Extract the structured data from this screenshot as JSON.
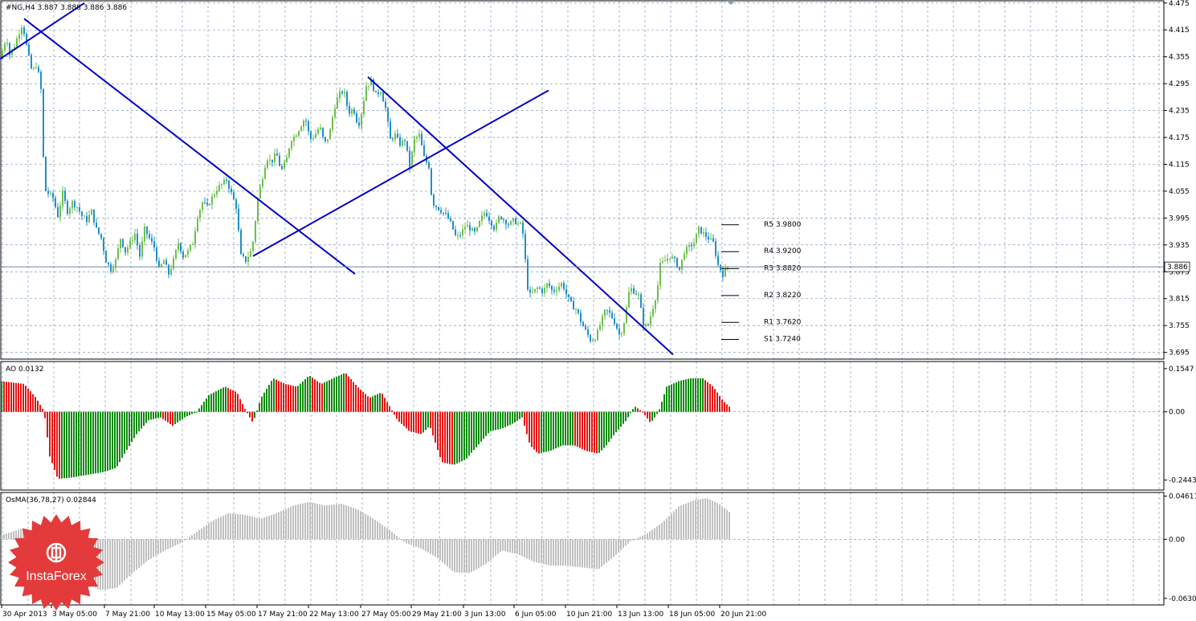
{
  "colors": {
    "bull": "#6dbf4b",
    "bear": "#1f8fc9",
    "trend": "#0000c8",
    "ao_up": "#0a8a0a",
    "ao_down": "#e81010",
    "osma": "#c0c0c0",
    "grid": "#6e8aa8",
    "current": "#6e8aa8",
    "logo": "#e33b3b"
  },
  "chart_data": [
    {
      "type": "candlestick",
      "title": "#NG,H4  3.887 3.888 3.886 3.886",
      "ylim": [
        3.68,
        4.48
      ],
      "y_ticks": [
        "4.475",
        "4.415",
        "4.355",
        "4.295",
        "4.235",
        "4.175",
        "4.115",
        "4.055",
        "3.995",
        "3.935",
        "3.875",
        "3.815",
        "3.755",
        "3.695"
      ],
      "current_price": 3.886,
      "current_label": "3.886",
      "pivot_levels": [
        {
          "label": "R5 3.9800",
          "value": 3.98
        },
        {
          "label": "R4 3.9200",
          "value": 3.92
        },
        {
          "label": "R3 3.8820",
          "value": 3.882
        },
        {
          "label": "R2 3.8220",
          "value": 3.822
        },
        {
          "label": "R1 3.7620",
          "value": 3.762
        },
        {
          "label": "S1 3.7240",
          "value": 3.724
        }
      ],
      "path": [
        [
          0,
          4.35
        ],
        [
          8,
          4.4
        ],
        [
          12,
          4.36
        ],
        [
          18,
          4.38
        ],
        [
          22,
          4.4
        ],
        [
          28,
          4.43
        ],
        [
          34,
          4.37
        ],
        [
          40,
          4.32
        ],
        [
          46,
          4.34
        ],
        [
          52,
          4.27
        ],
        [
          55,
          4.06
        ],
        [
          60,
          4.05
        ],
        [
          66,
          4.04
        ],
        [
          72,
          4.0
        ],
        [
          78,
          4.05
        ],
        [
          84,
          4.01
        ],
        [
          90,
          4.03
        ],
        [
          96,
          4.02
        ],
        [
          102,
          4.0
        ],
        [
          108,
          3.99
        ],
        [
          114,
          4.01
        ],
        [
          120,
          3.97
        ],
        [
          126,
          3.95
        ],
        [
          132,
          3.9
        ],
        [
          138,
          3.88
        ],
        [
          144,
          3.9
        ],
        [
          150,
          3.95
        ],
        [
          156,
          3.92
        ],
        [
          162,
          3.94
        ],
        [
          168,
          3.96
        ],
        [
          174,
          3.91
        ],
        [
          180,
          3.97
        ],
        [
          186,
          3.95
        ],
        [
          192,
          3.93
        ],
        [
          198,
          3.88
        ],
        [
          204,
          3.9
        ],
        [
          210,
          3.87
        ],
        [
          216,
          3.9
        ],
        [
          222,
          3.94
        ],
        [
          228,
          3.91
        ],
        [
          234,
          3.92
        ],
        [
          240,
          3.94
        ],
        [
          246,
          4.0
        ],
        [
          252,
          4.03
        ],
        [
          258,
          4.02
        ],
        [
          264,
          4.04
        ],
        [
          270,
          4.06
        ],
        [
          276,
          4.07
        ],
        [
          282,
          4.08
        ],
        [
          288,
          4.05
        ],
        [
          294,
          4.02
        ],
        [
          300,
          3.91
        ],
        [
          306,
          3.9
        ],
        [
          312,
          3.92
        ],
        [
          316,
          3.95
        ],
        [
          320,
          4.03
        ],
        [
          326,
          4.08
        ],
        [
          332,
          4.13
        ],
        [
          338,
          4.12
        ],
        [
          344,
          4.14
        ],
        [
          350,
          4.1
        ],
        [
          356,
          4.12
        ],
        [
          362,
          4.17
        ],
        [
          368,
          4.18
        ],
        [
          374,
          4.2
        ],
        [
          380,
          4.22
        ],
        [
          386,
          4.17
        ],
        [
          392,
          4.18
        ],
        [
          398,
          4.2
        ],
        [
          404,
          4.16
        ],
        [
          410,
          4.18
        ],
        [
          416,
          4.24
        ],
        [
          422,
          4.27
        ],
        [
          428,
          4.28
        ],
        [
          434,
          4.23
        ],
        [
          440,
          4.24
        ],
        [
          446,
          4.2
        ],
        [
          450,
          4.23
        ],
        [
          456,
          4.29
        ],
        [
          462,
          4.3
        ],
        [
          468,
          4.27
        ],
        [
          474,
          4.28
        ],
        [
          480,
          4.24
        ],
        [
          486,
          4.17
        ],
        [
          492,
          4.18
        ],
        [
          498,
          4.16
        ],
        [
          504,
          4.17
        ],
        [
          510,
          4.11
        ],
        [
          516,
          4.17
        ],
        [
          522,
          4.18
        ],
        [
          528,
          4.13
        ],
        [
          534,
          4.11
        ],
        [
          538,
          4.03
        ],
        [
          544,
          4.02
        ],
        [
          550,
          4.01
        ],
        [
          556,
          4.0
        ],
        [
          562,
          3.98
        ],
        [
          568,
          3.95
        ],
        [
          574,
          3.96
        ],
        [
          580,
          3.98
        ],
        [
          586,
          3.97
        ],
        [
          592,
          3.96
        ],
        [
          598,
          3.99
        ],
        [
          604,
          4.01
        ],
        [
          610,
          3.99
        ],
        [
          616,
          3.97
        ],
        [
          622,
          4.0
        ],
        [
          628,
          3.99
        ],
        [
          634,
          3.98
        ],
        [
          640,
          3.99
        ],
        [
          646,
          3.98
        ],
        [
          650,
          3.98
        ],
        [
          654,
          3.9
        ],
        [
          658,
          3.82
        ],
        [
          664,
          3.83
        ],
        [
          670,
          3.84
        ],
        [
          676,
          3.83
        ],
        [
          682,
          3.85
        ],
        [
          688,
          3.83
        ],
        [
          694,
          3.84
        ],
        [
          700,
          3.85
        ],
        [
          706,
          3.82
        ],
        [
          712,
          3.8
        ],
        [
          718,
          3.79
        ],
        [
          724,
          3.76
        ],
        [
          730,
          3.74
        ],
        [
          736,
          3.72
        ],
        [
          742,
          3.73
        ],
        [
          748,
          3.76
        ],
        [
          754,
          3.79
        ],
        [
          760,
          3.78
        ],
        [
          766,
          3.76
        ],
        [
          772,
          3.73
        ],
        [
          778,
          3.77
        ],
        [
          784,
          3.84
        ],
        [
          790,
          3.83
        ],
        [
          796,
          3.82
        ],
        [
          800,
          3.76
        ],
        [
          806,
          3.75
        ],
        [
          812,
          3.79
        ],
        [
          818,
          3.83
        ],
        [
          822,
          3.89
        ],
        [
          828,
          3.9
        ],
        [
          834,
          3.91
        ],
        [
          840,
          3.9
        ],
        [
          846,
          3.88
        ],
        [
          852,
          3.92
        ],
        [
          858,
          3.93
        ],
        [
          864,
          3.94
        ],
        [
          870,
          3.97
        ],
        [
          876,
          3.96
        ],
        [
          882,
          3.95
        ],
        [
          888,
          3.94
        ],
        [
          894,
          3.89
        ],
        [
          900,
          3.87
        ],
        [
          906,
          3.886
        ]
      ],
      "trendlines": [
        [
          [
            0,
            4.35
          ],
          [
            105,
            4.475
          ]
        ],
        [
          [
            30,
            4.44
          ],
          [
            442,
            3.87
          ]
        ],
        [
          [
            315,
            3.91
          ],
          [
            683,
            4.28
          ]
        ],
        [
          [
            458,
            4.31
          ],
          [
            838,
            3.69
          ]
        ]
      ]
    },
    {
      "type": "bar",
      "name": "AO 0.0132",
      "ylim": [
        -0.28,
        0.18
      ],
      "y_ticks": [
        "0.1547",
        "0.00",
        "-0.2443"
      ],
      "values_path": [
        [
          0,
          0.11
        ],
        [
          30,
          0.1
        ],
        [
          45,
          0.05
        ],
        [
          55,
          0.0
        ],
        [
          62,
          -0.16
        ],
        [
          72,
          -0.24
        ],
        [
          90,
          -0.235
        ],
        [
          110,
          -0.225
        ],
        [
          130,
          -0.215
        ],
        [
          145,
          -0.2
        ],
        [
          155,
          -0.15
        ],
        [
          170,
          -0.08
        ],
        [
          185,
          -0.03
        ],
        [
          200,
          -0.02
        ],
        [
          215,
          -0.05
        ],
        [
          230,
          -0.02
        ],
        [
          245,
          0.0
        ],
        [
          260,
          0.06
        ],
        [
          280,
          0.09
        ],
        [
          295,
          0.07
        ],
        [
          305,
          0.01
        ],
        [
          315,
          -0.04
        ],
        [
          325,
          0.05
        ],
        [
          340,
          0.12
        ],
        [
          355,
          0.1
        ],
        [
          370,
          0.09
        ],
        [
          385,
          0.13
        ],
        [
          400,
          0.1
        ],
        [
          415,
          0.12
        ],
        [
          430,
          0.14
        ],
        [
          445,
          0.09
        ],
        [
          460,
          0.05
        ],
        [
          475,
          0.07
        ],
        [
          485,
          0.02
        ],
        [
          495,
          -0.03
        ],
        [
          510,
          -0.07
        ],
        [
          525,
          -0.08
        ],
        [
          535,
          -0.05
        ],
        [
          550,
          -0.18
        ],
        [
          565,
          -0.19
        ],
        [
          580,
          -0.17
        ],
        [
          595,
          -0.12
        ],
        [
          610,
          -0.07
        ],
        [
          625,
          -0.06
        ],
        [
          640,
          -0.04
        ],
        [
          650,
          -0.02
        ],
        [
          660,
          -0.12
        ],
        [
          670,
          -0.15
        ],
        [
          685,
          -0.14
        ],
        [
          700,
          -0.12
        ],
        [
          715,
          -0.12
        ],
        [
          730,
          -0.14
        ],
        [
          745,
          -0.15
        ],
        [
          755,
          -0.12
        ],
        [
          765,
          -0.08
        ],
        [
          780,
          -0.03
        ],
        [
          790,
          0.02
        ],
        [
          800,
          0.0
        ],
        [
          810,
          -0.04
        ],
        [
          820,
          0.0
        ],
        [
          830,
          0.09
        ],
        [
          845,
          0.11
        ],
        [
          860,
          0.12
        ],
        [
          875,
          0.12
        ],
        [
          888,
          0.09
        ],
        [
          900,
          0.04
        ],
        [
          910,
          0.013
        ]
      ]
    },
    {
      "type": "bar",
      "name": "OsMA(36,78,27) 0.02844",
      "ylim": [
        -0.07,
        0.05
      ],
      "y_ticks": [
        "0.04611",
        "0.00",
        "-0.06302"
      ],
      "values_path": [
        [
          0,
          0.004
        ],
        [
          30,
          0.012
        ],
        [
          45,
          0.008
        ],
        [
          60,
          -0.004
        ],
        [
          80,
          -0.025
        ],
        [
          100,
          -0.044
        ],
        [
          125,
          -0.054
        ],
        [
          145,
          -0.052
        ],
        [
          165,
          -0.036
        ],
        [
          185,
          -0.022
        ],
        [
          205,
          -0.012
        ],
        [
          225,
          -0.004
        ],
        [
          245,
          0.008
        ],
        [
          265,
          0.02
        ],
        [
          285,
          0.028
        ],
        [
          305,
          0.026
        ],
        [
          325,
          0.022
        ],
        [
          345,
          0.028
        ],
        [
          365,
          0.036
        ],
        [
          385,
          0.04
        ],
        [
          405,
          0.036
        ],
        [
          425,
          0.038
        ],
        [
          445,
          0.032
        ],
        [
          465,
          0.022
        ],
        [
          485,
          0.01
        ],
        [
          505,
          -0.004
        ],
        [
          525,
          -0.01
        ],
        [
          545,
          -0.02
        ],
        [
          565,
          -0.035
        ],
        [
          585,
          -0.036
        ],
        [
          605,
          -0.026
        ],
        [
          625,
          -0.012
        ],
        [
          645,
          -0.016
        ],
        [
          665,
          -0.024
        ],
        [
          685,
          -0.028
        ],
        [
          705,
          -0.028
        ],
        [
          725,
          -0.03
        ],
        [
          745,
          -0.032
        ],
        [
          765,
          -0.018
        ],
        [
          785,
          -0.002
        ],
        [
          805,
          0.006
        ],
        [
          825,
          0.018
        ],
        [
          845,
          0.035
        ],
        [
          865,
          0.042
        ],
        [
          880,
          0.044
        ],
        [
          895,
          0.038
        ],
        [
          910,
          0.028
        ]
      ]
    }
  ],
  "x_labels": [
    "30 Apr 2013",
    "3 May 05:00",
    "7 May 21:00",
    "10 May 13:00",
    "15 May 05:00",
    "17 May 21:00",
    "22 May 13:00",
    "27 May 05:00",
    "29 May 21:00",
    "3 Jun 13:00",
    "6 Jun 05:00",
    "10 Jun 21:00",
    "13 Jun 13:00",
    "18 Jun 05:00",
    "20 Jun 21:00"
  ],
  "logo_text": "InstaForex",
  "logo_icon": "instaforex-logo-icon"
}
